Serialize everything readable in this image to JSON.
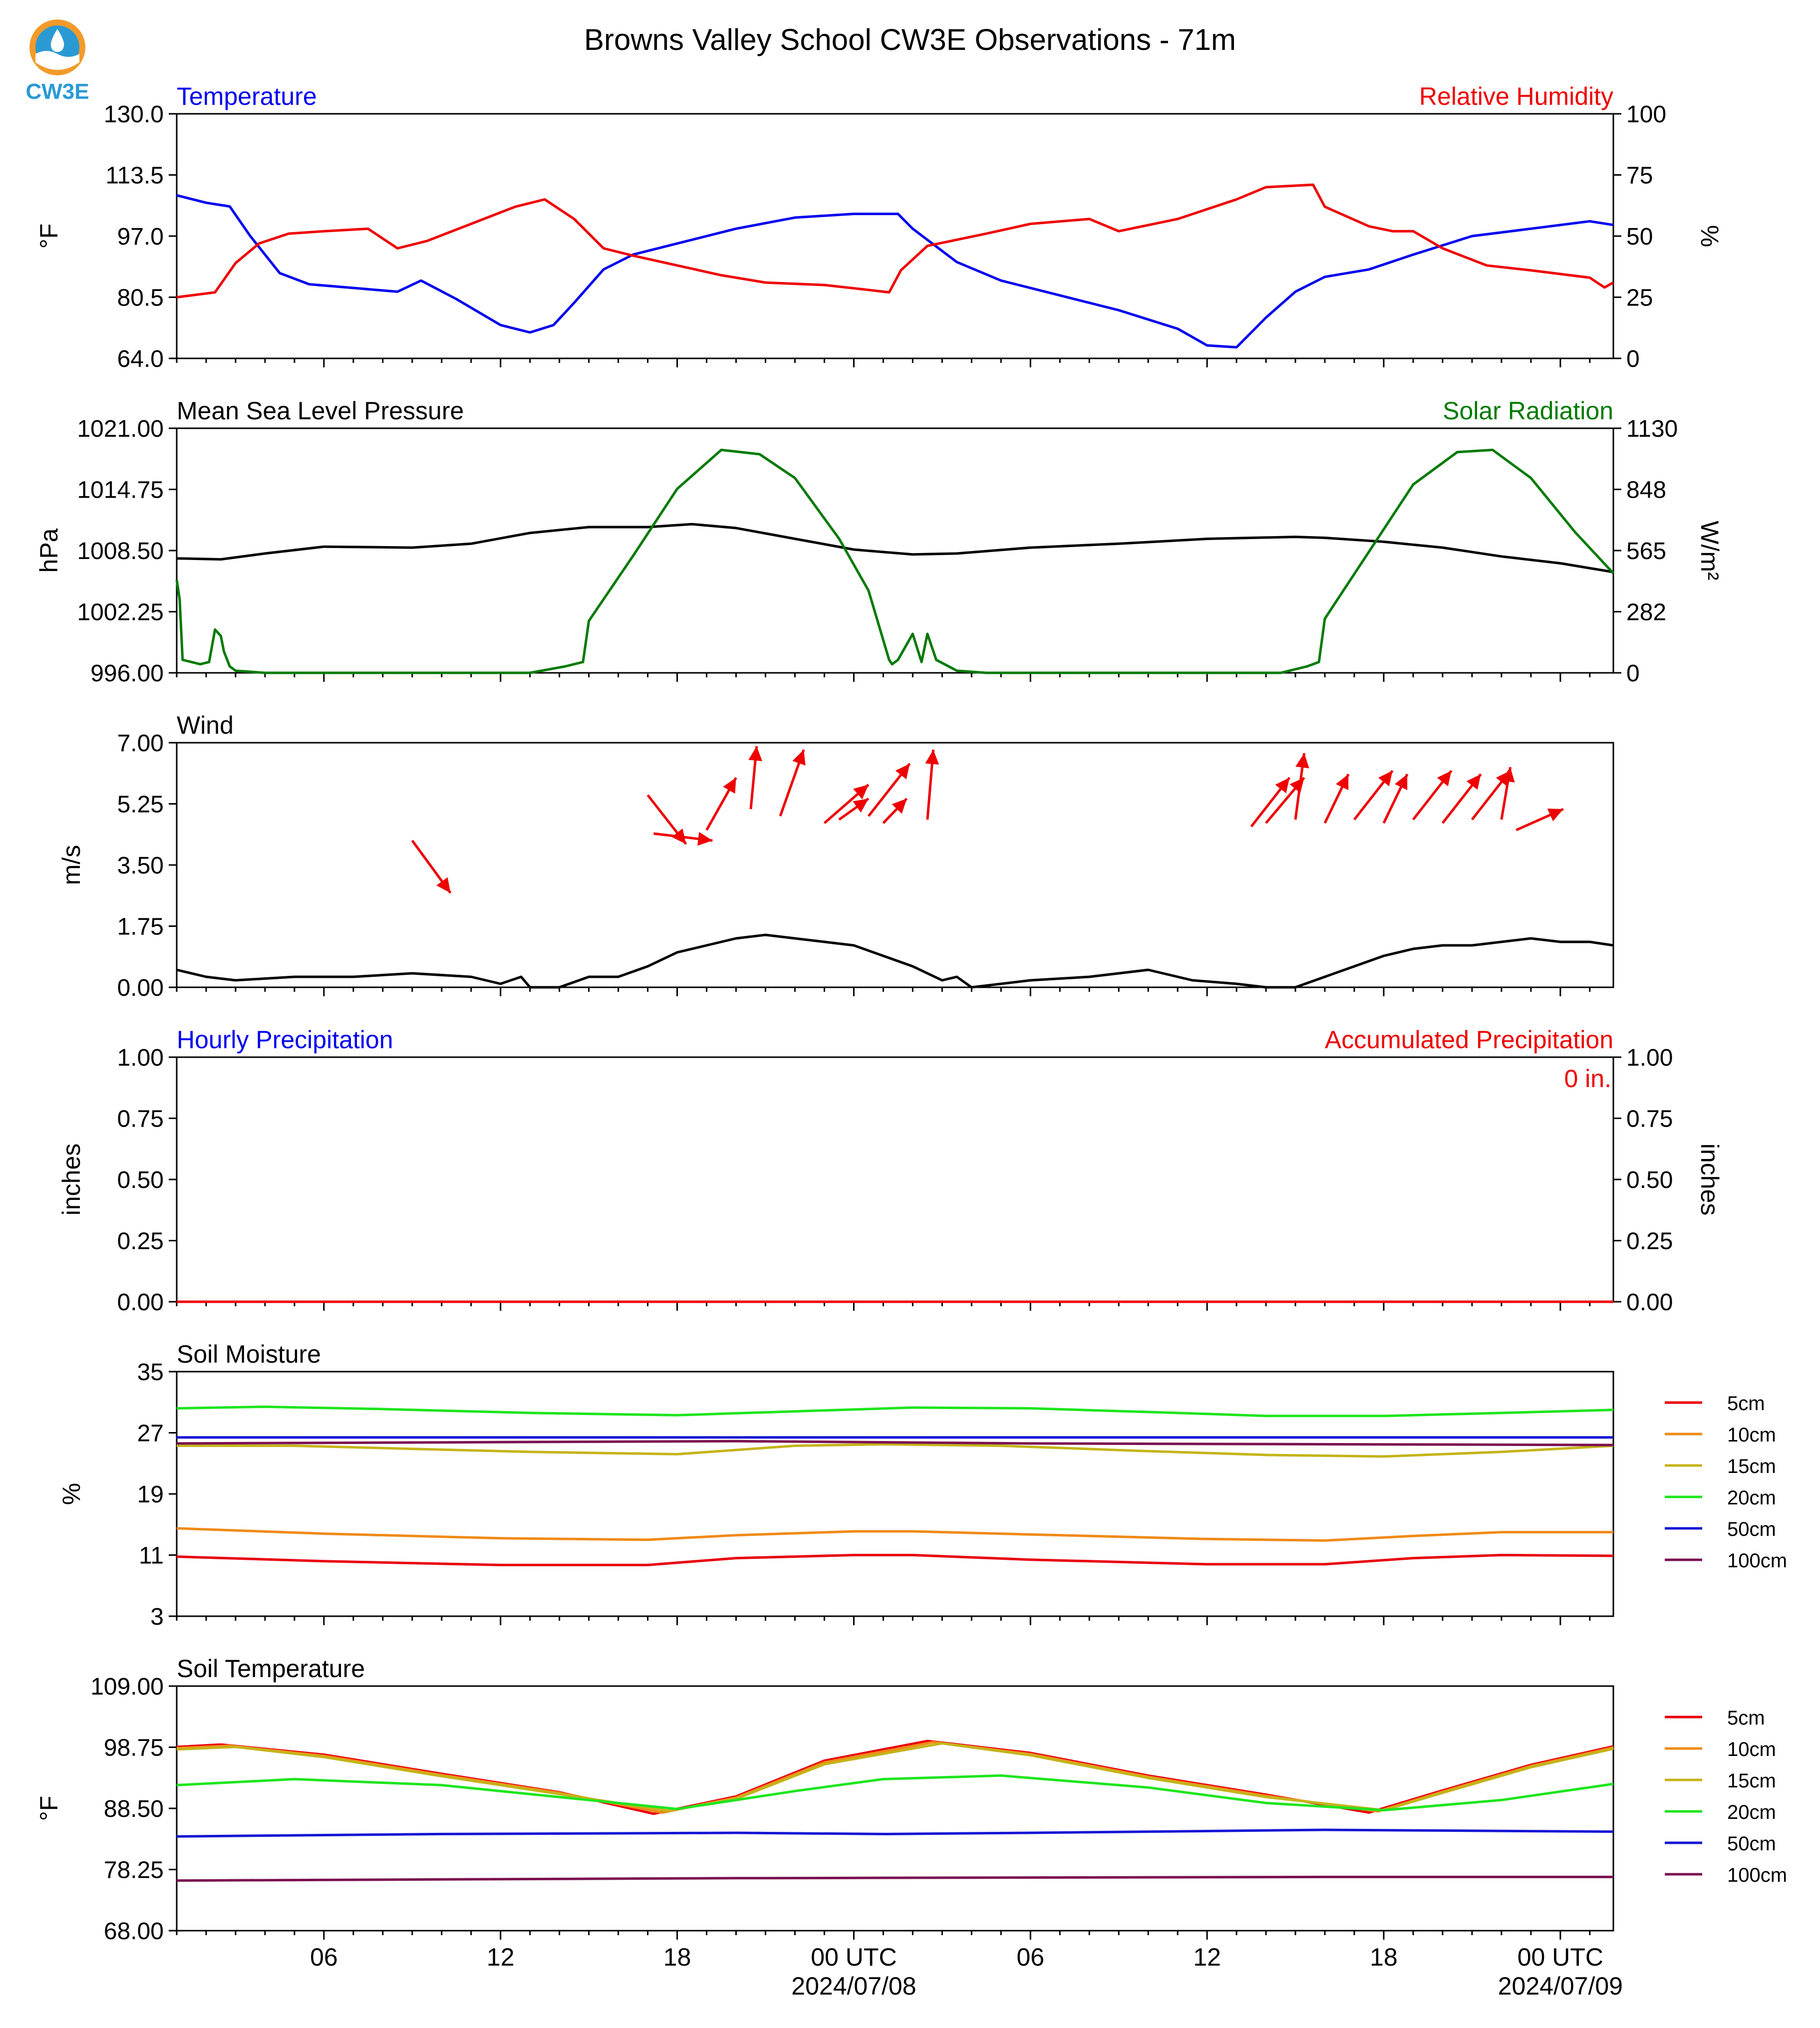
{
  "figure": {
    "title": "Browns Valley School CW3E Observations - 71m",
    "logo_text": "CW3E",
    "x_axis": {
      "ticks": [
        "06",
        "12",
        "18",
        "00 UTC",
        "06",
        "12",
        "18",
        "00 UTC"
      ],
      "tick_hours": [
        6,
        12,
        18,
        24,
        30,
        36,
        42,
        48
      ],
      "dates": [
        "2024/07/08",
        "2024/07/09"
      ],
      "range_hours": [
        1,
        49.8
      ]
    },
    "colors": {
      "blue": "#0000ee",
      "red": "#ee0000",
      "green": "#007a00",
      "black": "#000000",
      "d5": "#e8000b",
      "d10": "#ef8a17",
      "d15": "#c4b41a",
      "d20": "#1ee51e",
      "d50": "#1414d4",
      "d100": "#7a1050"
    }
  },
  "chart_data": [
    {
      "type": "line",
      "title_left": "Temperature",
      "title_right": "Relative Humidity",
      "ylabel": "°F",
      "ylabel_right": "%",
      "ylim": [
        64,
        130
      ],
      "ylim_right": [
        0,
        100
      ],
      "yticks": [
        "130.0",
        "113.5",
        "97.0",
        "80.5",
        "64.0"
      ],
      "yticks_right": [
        "100",
        "75",
        "50",
        "25",
        "0"
      ],
      "series": [
        {
          "name": "Temperature",
          "axis": "left",
          "color": "blue",
          "x": [
            1,
            2,
            2.8,
            3.5,
            4.5,
            5.5,
            7,
            8.5,
            9.3,
            10.5,
            12,
            13,
            13.8,
            14.5,
            15.5,
            16.5,
            18,
            20,
            22,
            24,
            25.5,
            26,
            27.5,
            29,
            31,
            33,
            35,
            36,
            37,
            38,
            39,
            40,
            41.5,
            43,
            45,
            47,
            49,
            49.8
          ],
          "values": [
            108,
            106,
            105,
            97,
            87,
            84,
            83,
            82,
            85,
            80,
            73,
            71,
            73,
            79,
            88,
            92,
            95,
            99,
            102,
            103,
            103,
            99,
            90,
            85,
            81,
            77,
            72,
            67.5,
            67,
            75,
            82,
            86,
            88,
            92,
            97,
            99,
            101,
            100
          ]
        },
        {
          "name": "Relative Humidity",
          "axis": "right",
          "color": "red",
          "x": [
            1,
            2.3,
            3,
            3.8,
            4.8,
            6,
            7.5,
            8.5,
            9.5,
            11,
            12.5,
            13.5,
            14.5,
            15.5,
            16.5,
            18,
            19.5,
            21,
            23,
            24.5,
            25.2,
            25.6,
            26.5,
            27.3,
            28.5,
            30,
            32,
            33,
            35,
            37,
            38,
            39.6,
            40,
            41.5,
            42.3,
            43,
            44,
            45.5,
            47,
            49,
            49.5,
            49.8
          ],
          "values": [
            25,
            27,
            39,
            47,
            51,
            52,
            53,
            45,
            48,
            55,
            62,
            65,
            57,
            45,
            42,
            38,
            34,
            31,
            30,
            28,
            27,
            36,
            46,
            48,
            51,
            55,
            57,
            52,
            57,
            65,
            70,
            71,
            62,
            54,
            52,
            52,
            45,
            38,
            36,
            33,
            29,
            31
          ]
        }
      ]
    },
    {
      "type": "line",
      "title_left": "Mean Sea Level Pressure",
      "title_right": "Solar Radiation",
      "ylabel": "hPa",
      "ylabel_right": "W/m²",
      "ylim": [
        996,
        1021
      ],
      "ylim_right": [
        0,
        1130
      ],
      "yticks": [
        "1021.00",
        "1014.75",
        "1008.50",
        "1002.25",
        "996.00"
      ],
      "yticks_right": [
        "1130",
        "848",
        "565",
        "282",
        "0"
      ],
      "series": [
        {
          "name": "Mean Sea Level Pressure",
          "axis": "left",
          "color": "black",
          "x": [
            1,
            2.5,
            4,
            6,
            9,
            11,
            13,
            15,
            17,
            18.5,
            20,
            22,
            24,
            26,
            27.5,
            30,
            33,
            36,
            39,
            40,
            42,
            44,
            46,
            48,
            49.8
          ],
          "values": [
            1007.7,
            1007.6,
            1008.2,
            1008.9,
            1008.8,
            1009.2,
            1010.3,
            1010.9,
            1010.9,
            1011.2,
            1010.8,
            1009.7,
            1008.6,
            1008.1,
            1008.2,
            1008.8,
            1009.2,
            1009.7,
            1009.9,
            1009.8,
            1009.4,
            1008.8,
            1007.9,
            1007.2,
            1006.3
          ]
        },
        {
          "name": "Solar Radiation",
          "axis": "right",
          "color": "green",
          "x": [
            1,
            1.1,
            1.2,
            1.5,
            1.8,
            2.1,
            2.3,
            2.5,
            2.6,
            2.8,
            3,
            4,
            6,
            10,
            12,
            13,
            14.2,
            14.8,
            15,
            16.5,
            18,
            19.5,
            20.8,
            22,
            23.5,
            24.5,
            25.2,
            25.3,
            25.5,
            26,
            26.3,
            26.5,
            26.8,
            27.5,
            28.5,
            32,
            36,
            38.5,
            39.4,
            39.8,
            40,
            41.5,
            43,
            44.5,
            45.7,
            47,
            48.5,
            49.8
          ],
          "values": [
            430,
            340,
            60,
            50,
            40,
            50,
            200,
            170,
            100,
            30,
            10,
            0,
            0,
            0,
            0,
            0,
            30,
            50,
            240,
            540,
            850,
            1030,
            1010,
            900,
            620,
            380,
            60,
            40,
            60,
            180,
            50,
            180,
            60,
            10,
            0,
            0,
            0,
            0,
            30,
            50,
            250,
            560,
            870,
            1020,
            1030,
            900,
            650,
            460
          ]
        }
      ]
    },
    {
      "type": "line",
      "title_left": "Wind",
      "ylabel": "m/s",
      "ylim": [
        0,
        7
      ],
      "yticks": [
        "7.00",
        "5.25",
        "3.50",
        "1.75",
        "0.00"
      ],
      "series": [
        {
          "name": "Wind",
          "color": "black",
          "x": [
            1,
            2,
            3,
            5,
            7,
            9,
            11,
            12,
            12.7,
            13,
            14,
            15,
            16,
            17,
            18,
            19,
            20,
            21,
            22,
            23,
            24,
            25,
            26,
            27,
            27.5,
            28,
            30,
            32,
            34,
            35.5,
            37,
            38,
            39,
            40,
            41,
            42,
            43,
            44,
            45,
            46,
            47,
            48,
            49,
            49.8
          ],
          "values": [
            0.5,
            0.3,
            0.2,
            0.3,
            0.3,
            0.4,
            0.3,
            0.1,
            0.3,
            0.0,
            0.0,
            0.3,
            0.3,
            0.6,
            1.0,
            1.2,
            1.4,
            1.5,
            1.4,
            1.3,
            1.2,
            0.9,
            0.6,
            0.2,
            0.3,
            0.0,
            0.2,
            0.3,
            0.5,
            0.2,
            0.1,
            0.0,
            0.0,
            0.3,
            0.6,
            0.9,
            1.1,
            1.2,
            1.2,
            1.3,
            1.4,
            1.3,
            1.3,
            1.2
          ]
        }
      ],
      "arrows": {
        "x": [
          9,
          17,
          17.2,
          19,
          20.5,
          21.5,
          23,
          23.5,
          24.5,
          25,
          26.5,
          37.5,
          38,
          39,
          40,
          41,
          42,
          43,
          44,
          45,
          46,
          46.5
        ],
        "y": [
          4.2,
          5.5,
          4.4,
          4.5,
          5.1,
          4.9,
          4.7,
          4.8,
          4.9,
          4.7,
          4.8,
          4.6,
          4.7,
          4.8,
          4.7,
          4.8,
          4.7,
          4.8,
          4.7,
          4.8,
          4.8,
          4.5
        ],
        "dx": [
          1.3,
          1.3,
          2.0,
          1.0,
          0.2,
          0.8,
          1.5,
          1.0,
          1.4,
          0.8,
          0.2,
          1.3,
          1.3,
          0.3,
          0.8,
          1.3,
          0.8,
          1.3,
          1.3,
          1.3,
          0.3,
          1.6
        ],
        "dy": [
          -1.5,
          -1.4,
          -0.2,
          1.5,
          1.8,
          1.9,
          1.1,
          0.6,
          1.5,
          0.7,
          2.0,
          1.4,
          1.3,
          1.9,
          1.4,
          1.4,
          1.4,
          1.4,
          1.4,
          1.4,
          1.5,
          0.6
        ]
      }
    },
    {
      "type": "line",
      "title_left": "Hourly Precipitation",
      "title_right": "Accumulated Precipitation",
      "annotation": "0 in.",
      "ylabel": "inches",
      "ylabel_right": "inches",
      "ylim": [
        0,
        1
      ],
      "yticks": [
        "1.00",
        "0.75",
        "0.50",
        "0.25",
        "0.00"
      ],
      "yticks_right": [
        "1.00",
        "0.75",
        "0.50",
        "0.25",
        "0.00"
      ],
      "series": [
        {
          "name": "Hourly Precipitation",
          "color": "blue",
          "x": [
            1,
            49.8
          ],
          "values": [
            0,
            0
          ]
        },
        {
          "name": "Accumulated Precipitation",
          "color": "red",
          "x": [
            1,
            49.8
          ],
          "values": [
            0,
            0
          ]
        }
      ]
    },
    {
      "type": "line",
      "title_left": "Soil Moisture",
      "ylabel": "%",
      "ylim": [
        3,
        35
      ],
      "yticks": [
        "35",
        "27",
        "19",
        "11",
        "3"
      ],
      "legend": [
        "5cm",
        "10cm",
        "15cm",
        "20cm",
        "50cm",
        "100cm"
      ],
      "series": [
        {
          "name": "5cm",
          "color": "d5",
          "x": [
            1,
            6,
            12,
            17,
            20,
            24,
            26,
            30,
            36,
            40,
            43,
            46,
            49.8
          ],
          "values": [
            10.8,
            10.2,
            9.7,
            9.7,
            10.6,
            11.0,
            11.0,
            10.4,
            9.8,
            9.8,
            10.6,
            11.0,
            10.9
          ]
        },
        {
          "name": "10cm",
          "color": "d10",
          "x": [
            1,
            6,
            12,
            17,
            20,
            24,
            26,
            30,
            36,
            40,
            43,
            46,
            49.8
          ],
          "values": [
            14.5,
            13.8,
            13.2,
            13.0,
            13.6,
            14.1,
            14.1,
            13.7,
            13.1,
            12.9,
            13.5,
            14.0,
            14.0
          ]
        },
        {
          "name": "15cm",
          "color": "d15",
          "x": [
            1,
            5,
            9,
            13,
            18,
            22,
            25,
            29,
            34,
            38,
            42,
            46,
            49.8
          ],
          "values": [
            25.3,
            25.3,
            24.9,
            24.5,
            24.2,
            25.3,
            25.5,
            25.3,
            24.6,
            24.1,
            23.9,
            24.5,
            25.3
          ]
        },
        {
          "name": "20cm",
          "color": "d20",
          "x": [
            1,
            4,
            8,
            13,
            18,
            22,
            26,
            30,
            35,
            38,
            42,
            46,
            49.8
          ],
          "values": [
            30.2,
            30.4,
            30.1,
            29.6,
            29.3,
            29.8,
            30.3,
            30.2,
            29.6,
            29.2,
            29.2,
            29.6,
            30.0
          ]
        },
        {
          "name": "50cm",
          "color": "d50",
          "x": [
            1,
            49.8
          ],
          "values": [
            26.4,
            26.4
          ]
        },
        {
          "name": "100cm",
          "color": "d100",
          "x": [
            1,
            20,
            30,
            49.8
          ],
          "values": [
            25.6,
            25.9,
            25.6,
            25.4
          ]
        }
      ]
    },
    {
      "type": "line",
      "title_left": "Soil Temperature",
      "ylabel": "°F",
      "ylim": [
        68,
        109
      ],
      "yticks": [
        "109.00",
        "98.75",
        "88.50",
        "78.25",
        "68.00"
      ],
      "legend": [
        "5cm",
        "10cm",
        "15cm",
        "20cm",
        "50cm",
        "100cm"
      ],
      "series": [
        {
          "name": "5cm",
          "color": "d5",
          "x": [
            1,
            2.5,
            6,
            10,
            14,
            17.2,
            20,
            23,
            26.5,
            30,
            34,
            38,
            41.5,
            44,
            47,
            49.8
          ],
          "values": [
            98.8,
            99.2,
            97.5,
            94.3,
            91.2,
            87.6,
            90.5,
            96.5,
            99.8,
            97.8,
            94.0,
            90.8,
            87.8,
            91.5,
            95.8,
            98.9
          ]
        },
        {
          "name": "10cm",
          "color": "d10",
          "x": [
            1,
            2.8,
            6,
            10,
            14,
            17.5,
            20,
            23,
            26.7,
            30,
            34,
            38,
            41.8,
            44,
            47,
            49.8
          ],
          "values": [
            98.6,
            99.0,
            97.3,
            94.1,
            91.1,
            87.8,
            90.3,
            96.2,
            99.6,
            97.6,
            93.8,
            90.6,
            88.0,
            91.3,
            95.6,
            98.7
          ]
        },
        {
          "name": "15cm",
          "color": "d15",
          "x": [
            1,
            3,
            6,
            10,
            14,
            17.7,
            20,
            23,
            27,
            30,
            34,
            38,
            42,
            44,
            47,
            49.8
          ],
          "values": [
            98.4,
            98.8,
            97.1,
            93.9,
            90.9,
            88.1,
            90.1,
            95.9,
            99.4,
            97.4,
            93.6,
            90.4,
            88.2,
            91.1,
            95.4,
            98.5
          ]
        },
        {
          "name": "20cm",
          "color": "d20",
          "x": [
            1,
            5,
            10,
            15,
            18,
            22,
            25,
            29,
            34,
            38,
            42,
            46,
            49.8
          ],
          "values": [
            92.4,
            93.4,
            92.4,
            89.9,
            88.4,
            91.4,
            93.4,
            94.0,
            92.0,
            89.4,
            88.2,
            89.9,
            92.6
          ]
        },
        {
          "name": "50cm",
          "color": "d50",
          "x": [
            1,
            10,
            20,
            25,
            30,
            40,
            49.8
          ],
          "values": [
            83.8,
            84.2,
            84.4,
            84.2,
            84.4,
            84.9,
            84.6
          ]
        },
        {
          "name": "100cm",
          "color": "d100",
          "x": [
            1,
            20,
            40,
            49.8
          ],
          "values": [
            76.4,
            76.8,
            77.0,
            77.0
          ]
        }
      ]
    }
  ]
}
